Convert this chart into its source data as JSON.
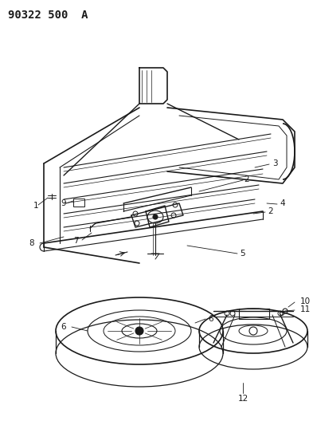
{
  "title": "90322 500  A",
  "bg_color": "#ffffff",
  "line_color": "#1a1a1a",
  "title_fontsize": 10,
  "figsize": [
    3.93,
    5.33
  ],
  "dpi": 100
}
